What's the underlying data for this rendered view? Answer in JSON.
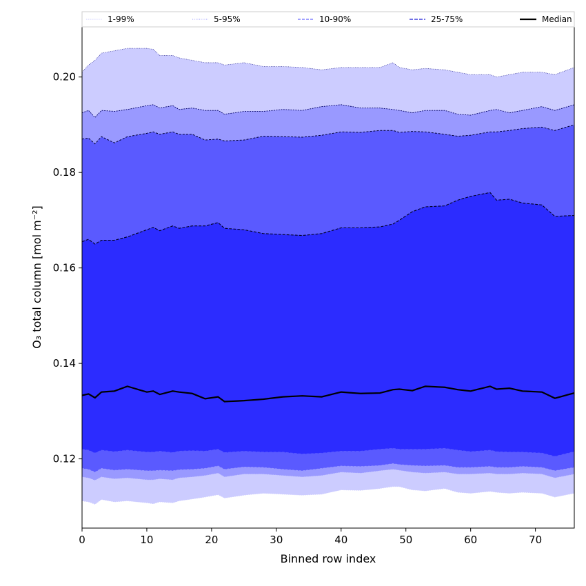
{
  "chart_data": {
    "type": "area",
    "title": "",
    "xlabel": "Binned row index",
    "ylabel": "O₃ total column [mol m⁻²]",
    "xlim": [
      0,
      76
    ],
    "ylim": [
      0.1055,
      0.2105
    ],
    "xticks": [
      0,
      10,
      20,
      30,
      40,
      50,
      60,
      70
    ],
    "yticks": [
      0.12,
      0.14,
      0.16,
      0.18,
      0.2
    ],
    "ytick_labels": [
      "0.12",
      "0.14",
      "0.16",
      "0.18",
      "0.20"
    ],
    "colors": {
      "band_1_99": "#ccccff",
      "band_5_95": "#9999ff",
      "band_10_90": "#5a5aff",
      "band_25_75": "#2c2cff",
      "median": "#000000"
    },
    "legend": [
      "1-99%",
      "5-95%",
      "10-90%",
      "25-75%",
      "Median"
    ],
    "legend_position": "top",
    "x_knots": [
      0,
      1,
      2,
      3,
      5,
      7,
      10,
      11,
      12,
      14,
      15,
      17,
      19,
      21,
      22,
      25,
      28,
      31,
      34,
      37,
      40,
      43,
      46,
      48,
      49,
      51,
      53,
      56,
      58,
      60,
      63,
      64,
      66,
      68,
      71,
      73,
      76
    ],
    "series": [
      {
        "name": "p1",
        "values": [
          0.1112,
          0.111,
          0.1105,
          0.1115,
          0.111,
          0.1112,
          0.1108,
          0.1106,
          0.111,
          0.1108,
          0.1112,
          0.1116,
          0.112,
          0.1125,
          0.1118,
          0.1124,
          0.1128,
          0.1126,
          0.1124,
          0.1126,
          0.1135,
          0.1134,
          0.1138,
          0.1142,
          0.1142,
          0.1135,
          0.1133,
          0.1138,
          0.113,
          0.1128,
          0.1132,
          0.113,
          0.1128,
          0.113,
          0.1128,
          0.112,
          0.1128
        ]
      },
      {
        "name": "p5",
        "values": [
          0.1162,
          0.116,
          0.1155,
          0.1162,
          0.1158,
          0.116,
          0.1156,
          0.1156,
          0.1158,
          0.1156,
          0.116,
          0.1162,
          0.1165,
          0.117,
          0.1162,
          0.1168,
          0.1168,
          0.1165,
          0.1162,
          0.1165,
          0.1172,
          0.117,
          0.1175,
          0.1178,
          0.1176,
          0.1172,
          0.117,
          0.1172,
          0.1168,
          0.1168,
          0.117,
          0.1168,
          0.1168,
          0.117,
          0.1168,
          0.116,
          0.1168
        ]
      },
      {
        "name": "p10",
        "values": [
          0.118,
          0.1178,
          0.1172,
          0.118,
          0.1176,
          0.1178,
          0.1175,
          0.1175,
          0.1176,
          0.1175,
          0.1177,
          0.1178,
          0.118,
          0.1185,
          0.1178,
          0.1183,
          0.1182,
          0.1178,
          0.1175,
          0.118,
          0.1185,
          0.1184,
          0.1186,
          0.119,
          0.1188,
          0.1186,
          0.1185,
          0.1186,
          0.1182,
          0.1182,
          0.1184,
          0.1182,
          0.1182,
          0.1184,
          0.1182,
          0.1175,
          0.1182
        ]
      },
      {
        "name": "p25",
        "values": [
          0.122,
          0.1218,
          0.1212,
          0.1218,
          0.1215,
          0.1218,
          0.1214,
          0.1214,
          0.1216,
          0.1213,
          0.1216,
          0.1217,
          0.1216,
          0.122,
          0.1213,
          0.1216,
          0.1214,
          0.1214,
          0.121,
          0.1212,
          0.1216,
          0.1216,
          0.122,
          0.1222,
          0.122,
          0.122,
          0.122,
          0.1222,
          0.1218,
          0.1215,
          0.1218,
          0.1215,
          0.1214,
          0.1214,
          0.1212,
          0.1205,
          0.1215
        ]
      },
      {
        "name": "Median",
        "values": [
          0.1333,
          0.1336,
          0.1328,
          0.134,
          0.1342,
          0.1352,
          0.134,
          0.1342,
          0.1335,
          0.1342,
          0.134,
          0.1337,
          0.1326,
          0.133,
          0.132,
          0.1322,
          0.1325,
          0.133,
          0.1332,
          0.133,
          0.134,
          0.1337,
          0.1338,
          0.1345,
          0.1346,
          0.1343,
          0.1352,
          0.135,
          0.1345,
          0.1342,
          0.1352,
          0.1346,
          0.1348,
          0.1342,
          0.134,
          0.1327,
          0.1338
        ]
      },
      {
        "name": "p75",
        "values": [
          0.1655,
          0.166,
          0.165,
          0.1658,
          0.1658,
          0.1665,
          0.168,
          0.1685,
          0.1678,
          0.1688,
          0.1683,
          0.1688,
          0.1688,
          0.1695,
          0.1683,
          0.168,
          0.1672,
          0.167,
          0.1668,
          0.1672,
          0.1684,
          0.1684,
          0.1686,
          0.1692,
          0.17,
          0.1718,
          0.1728,
          0.173,
          0.1742,
          0.175,
          0.1758,
          0.1742,
          0.1744,
          0.1736,
          0.1732,
          0.1708,
          0.171
        ]
      },
      {
        "name": "p90",
        "values": [
          0.187,
          0.1872,
          0.186,
          0.1875,
          0.1862,
          0.1875,
          0.1882,
          0.1885,
          0.188,
          0.1885,
          0.188,
          0.188,
          0.1868,
          0.187,
          0.1866,
          0.1868,
          0.1876,
          0.1875,
          0.1874,
          0.1878,
          0.1885,
          0.1884,
          0.1888,
          0.1888,
          0.1884,
          0.1886,
          0.1885,
          0.188,
          0.1876,
          0.1878,
          0.1885,
          0.1885,
          0.1888,
          0.1892,
          0.1895,
          0.1888,
          0.19
        ]
      },
      {
        "name": "p95",
        "values": [
          0.1925,
          0.193,
          0.1915,
          0.193,
          0.1928,
          0.1932,
          0.194,
          0.1942,
          0.1935,
          0.194,
          0.1932,
          0.1935,
          0.193,
          0.193,
          0.1922,
          0.1928,
          0.1928,
          0.1932,
          0.193,
          0.1938,
          0.1942,
          0.1935,
          0.1935,
          0.1932,
          0.193,
          0.1925,
          0.193,
          0.193,
          0.1922,
          0.192,
          0.193,
          0.1932,
          0.1925,
          0.193,
          0.1938,
          0.193,
          0.1942
        ]
      },
      {
        "name": "p99",
        "values": [
          0.201,
          0.2025,
          0.2035,
          0.205,
          0.2055,
          0.206,
          0.206,
          0.2058,
          0.2045,
          0.2045,
          0.204,
          0.2035,
          0.203,
          0.203,
          0.2025,
          0.203,
          0.2022,
          0.2022,
          0.202,
          0.2015,
          0.202,
          0.202,
          0.202,
          0.203,
          0.202,
          0.2015,
          0.2018,
          0.2015,
          0.201,
          0.2005,
          0.2005,
          0.2,
          0.2005,
          0.201,
          0.201,
          0.2005,
          0.202
        ]
      }
    ]
  }
}
